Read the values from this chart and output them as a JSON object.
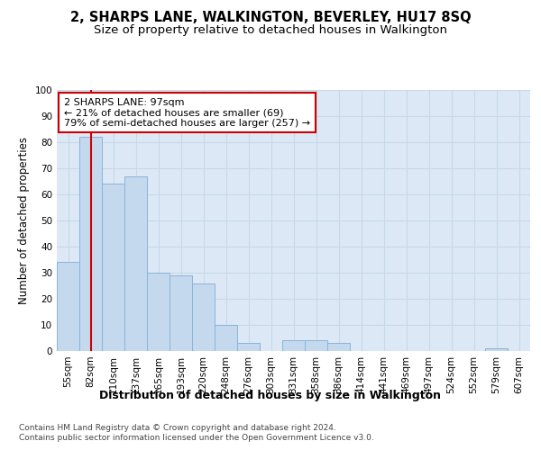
{
  "title": "2, SHARPS LANE, WALKINGTON, BEVERLEY, HU17 8SQ",
  "subtitle": "Size of property relative to detached houses in Walkington",
  "xlabel": "Distribution of detached houses by size in Walkington",
  "ylabel": "Number of detached properties",
  "categories": [
    "55sqm",
    "82sqm",
    "110sqm",
    "137sqm",
    "165sqm",
    "193sqm",
    "220sqm",
    "248sqm",
    "276sqm",
    "303sqm",
    "331sqm",
    "358sqm",
    "386sqm",
    "414sqm",
    "441sqm",
    "469sqm",
    "497sqm",
    "524sqm",
    "552sqm",
    "579sqm",
    "607sqm"
  ],
  "values": [
    34,
    82,
    64,
    67,
    30,
    29,
    26,
    10,
    3,
    0,
    4,
    4,
    3,
    0,
    0,
    0,
    0,
    0,
    0,
    1,
    0
  ],
  "bar_color": "#c5d9ee",
  "bar_edge_color": "#8ab4d8",
  "vline_x": 1,
  "vline_color": "#cc0000",
  "annotation_text": "2 SHARPS LANE: 97sqm\n← 21% of detached houses are smaller (69)\n79% of semi-detached houses are larger (257) →",
  "annotation_box_color": "#ffffff",
  "annotation_box_edge": "#cc0000",
  "ylim": [
    0,
    100
  ],
  "yticks": [
    0,
    10,
    20,
    30,
    40,
    50,
    60,
    70,
    80,
    90,
    100
  ],
  "grid_color": "#c8d8e8",
  "bg_color": "#dce8f5",
  "footer1": "Contains HM Land Registry data © Crown copyright and database right 2024.",
  "footer2": "Contains public sector information licensed under the Open Government Licence v3.0.",
  "title_fontsize": 10.5,
  "subtitle_fontsize": 9.5,
  "xlabel_fontsize": 9,
  "ylabel_fontsize": 8.5,
  "tick_fontsize": 7.5,
  "footer_fontsize": 6.5
}
